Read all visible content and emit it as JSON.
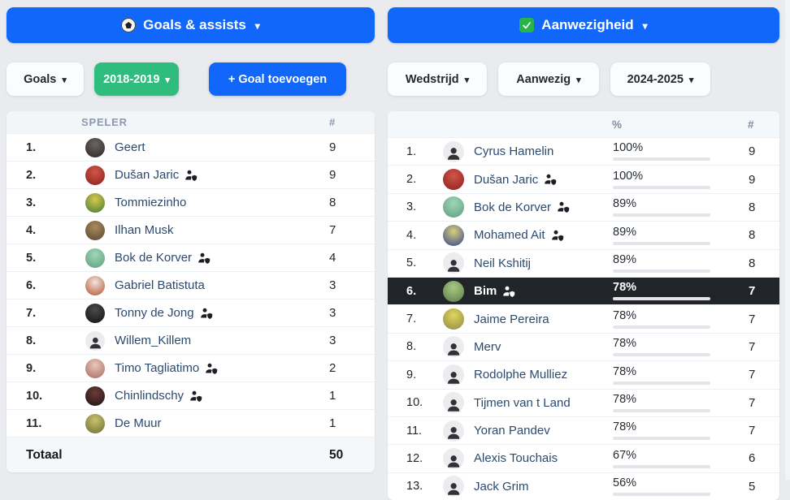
{
  "page": {
    "background": "#e9ebee"
  },
  "colors": {
    "primary_blue": "#1267fb",
    "green": "#2ebd7d",
    "bar_track": "#e2e6ea",
    "highlight_row_bg": "#212429",
    "bar_teal": [
      "#2fd0a5",
      "#27c4cb"
    ],
    "bar_blue": [
      "#29b7d8",
      "#1f5df0"
    ]
  },
  "left_panel": {
    "header": {
      "icon": "soccer-ball-icon",
      "title": "Goals & assists",
      "caret": "▾"
    },
    "filters": {
      "stat_type": {
        "label": "Goals",
        "caret": "▾"
      },
      "season": {
        "label": "2018-2019",
        "caret": "▾"
      },
      "add_goal": {
        "label": "+ Goal toevoegen"
      }
    },
    "table": {
      "headers": {
        "player": "SPELER",
        "count": "#"
      },
      "rows": [
        {
          "rank": "1.",
          "name": "Geert",
          "count": "9",
          "shield": false,
          "avatar": "photo",
          "av1": "#6b6662",
          "av2": "#2a2624"
        },
        {
          "rank": "2.",
          "name": "Dušan Jaric",
          "count": "9",
          "shield": true,
          "avatar": "photo",
          "av1": "#d05548",
          "av2": "#8e1f1e"
        },
        {
          "rank": "3.",
          "name": "Tommiezinho",
          "count": "8",
          "shield": false,
          "avatar": "photo",
          "av1": "#d9c84a",
          "av2": "#3e7a3a"
        },
        {
          "rank": "4.",
          "name": "Ilhan Musk",
          "count": "7",
          "shield": false,
          "avatar": "photo",
          "av1": "#a98b5f",
          "av2": "#5a452e"
        },
        {
          "rank": "5.",
          "name": "Bok de Korver",
          "count": "4",
          "shield": true,
          "avatar": "photo",
          "av1": "#9fd6b8",
          "av2": "#5d9e7e"
        },
        {
          "rank": "6.",
          "name": "Gabriel Batistuta",
          "count": "3",
          "shield": false,
          "avatar": "photo",
          "av1": "#f0e6de",
          "av2": "#b4502f"
        },
        {
          "rank": "7.",
          "name": "Tonny de Jong",
          "count": "3",
          "shield": true,
          "avatar": "photo",
          "av1": "#4a4a4a",
          "av2": "#111111"
        },
        {
          "rank": "8.",
          "name": "Willem_Killem",
          "count": "3",
          "shield": false,
          "avatar": "generic",
          "av1": "#ececef",
          "av2": "#ececef"
        },
        {
          "rank": "9.",
          "name": "Timo Tagliatimo",
          "count": "2",
          "shield": true,
          "avatar": "photo",
          "av1": "#e8c7bc",
          "av2": "#a56a5e"
        },
        {
          "rank": "10.",
          "name": "Chinlindschy",
          "count": "1",
          "shield": true,
          "avatar": "photo",
          "av1": "#6e3b38",
          "av2": "#191214"
        },
        {
          "rank": "11.",
          "name": "De Muur",
          "count": "1",
          "shield": false,
          "avatar": "photo",
          "av1": "#c9c06a",
          "av2": "#6b6f35"
        }
      ],
      "total_label": "Totaal",
      "total_value": "50"
    }
  },
  "right_panel": {
    "header": {
      "icon": "check-mark-icon",
      "title": "Aanwezigheid",
      "caret": "▾"
    },
    "filters": {
      "match": {
        "label": "Wedstrijd",
        "caret": "▾"
      },
      "present": {
        "label": "Aanwezig",
        "caret": "▾"
      },
      "season": {
        "label": "2024-2025",
        "caret": "▾"
      }
    },
    "table": {
      "headers": {
        "percent": "%",
        "count": "#"
      },
      "rows": [
        {
          "rank": "1.",
          "name": "Cyrus Hamelin",
          "percent_label": "100%",
          "percent": 100,
          "count": "9",
          "shield": false,
          "avatar": "generic",
          "av1": "#ececef",
          "av2": "#ececef",
          "highlight": false,
          "bar": [
            "#2fd0a5",
            "#27c4cb"
          ]
        },
        {
          "rank": "2.",
          "name": "Dušan Jaric",
          "percent_label": "100%",
          "percent": 100,
          "count": "9",
          "shield": true,
          "avatar": "photo",
          "av1": "#d05548",
          "av2": "#8e1f1e",
          "highlight": false,
          "bar": [
            "#2fd0a5",
            "#27c4cb"
          ]
        },
        {
          "rank": "3.",
          "name": "Bok de Korver",
          "percent_label": "89%",
          "percent": 89,
          "count": "8",
          "shield": true,
          "avatar": "photo",
          "av1": "#9fd6b8",
          "av2": "#5d9e7e",
          "highlight": false,
          "bar": [
            "#2fd0a5",
            "#27c4cb"
          ]
        },
        {
          "rank": "4.",
          "name": "Mohamed Ait",
          "percent_label": "89%",
          "percent": 89,
          "count": "8",
          "shield": true,
          "avatar": "photo",
          "av1": "#d8cf7a",
          "av2": "#31458f",
          "highlight": false,
          "bar": [
            "#2fd0a5",
            "#27c4cb"
          ]
        },
        {
          "rank": "5.",
          "name": "Neil Kshitij",
          "percent_label": "89%",
          "percent": 89,
          "count": "8",
          "shield": false,
          "avatar": "generic",
          "av1": "#ececef",
          "av2": "#ececef",
          "highlight": false,
          "bar": [
            "#2fd0a5",
            "#27c4cb"
          ]
        },
        {
          "rank": "6.",
          "name": "Bim",
          "percent_label": "78%",
          "percent": 78,
          "count": "7",
          "shield": true,
          "avatar": "photo",
          "av1": "#a8c985",
          "av2": "#5d7a46",
          "highlight": true,
          "bar": [
            "#2fd0a5",
            "#27c4cb"
          ]
        },
        {
          "rank": "7.",
          "name": "Jaime Pereira",
          "percent_label": "78%",
          "percent": 78,
          "count": "7",
          "shield": false,
          "avatar": "photo",
          "av1": "#e3d45c",
          "av2": "#8a8a46",
          "highlight": false,
          "bar": [
            "#2fd0a5",
            "#27c4cb"
          ]
        },
        {
          "rank": "8.",
          "name": "Merv",
          "percent_label": "78%",
          "percent": 78,
          "count": "7",
          "shield": false,
          "avatar": "generic",
          "av1": "#ececef",
          "av2": "#ececef",
          "highlight": false,
          "bar": [
            "#2fd0a5",
            "#27c4cb"
          ]
        },
        {
          "rank": "9.",
          "name": "Rodolphe Mulliez",
          "percent_label": "78%",
          "percent": 78,
          "count": "7",
          "shield": false,
          "avatar": "generic",
          "av1": "#ececef",
          "av2": "#ececef",
          "highlight": false,
          "bar": [
            "#2fd0a5",
            "#27c4cb"
          ]
        },
        {
          "rank": "10.",
          "name": "Tijmen van t Land",
          "percent_label": "78%",
          "percent": 78,
          "count": "7",
          "shield": false,
          "avatar": "generic",
          "av1": "#ececef",
          "av2": "#ececef",
          "highlight": false,
          "bar": [
            "#2fd0a5",
            "#27c4cb"
          ]
        },
        {
          "rank": "11.",
          "name": "Yoran Pandev",
          "percent_label": "78%",
          "percent": 78,
          "count": "7",
          "shield": false,
          "avatar": "generic",
          "av1": "#ececef",
          "av2": "#ececef",
          "highlight": false,
          "bar": [
            "#2fd0a5",
            "#27c4cb"
          ]
        },
        {
          "rank": "12.",
          "name": "Alexis Touchais",
          "percent_label": "67%",
          "percent": 67,
          "count": "6",
          "shield": false,
          "avatar": "generic",
          "av1": "#ececef",
          "av2": "#ececef",
          "highlight": false,
          "bar": [
            "#29b7d8",
            "#1f5df0"
          ]
        },
        {
          "rank": "13.",
          "name": "Jack Grim",
          "percent_label": "56%",
          "percent": 56,
          "count": "5",
          "shield": false,
          "avatar": "generic",
          "av1": "#ececef",
          "av2": "#ececef",
          "highlight": false,
          "bar": [
            "#29b7d8",
            "#1f5df0"
          ]
        }
      ]
    }
  }
}
